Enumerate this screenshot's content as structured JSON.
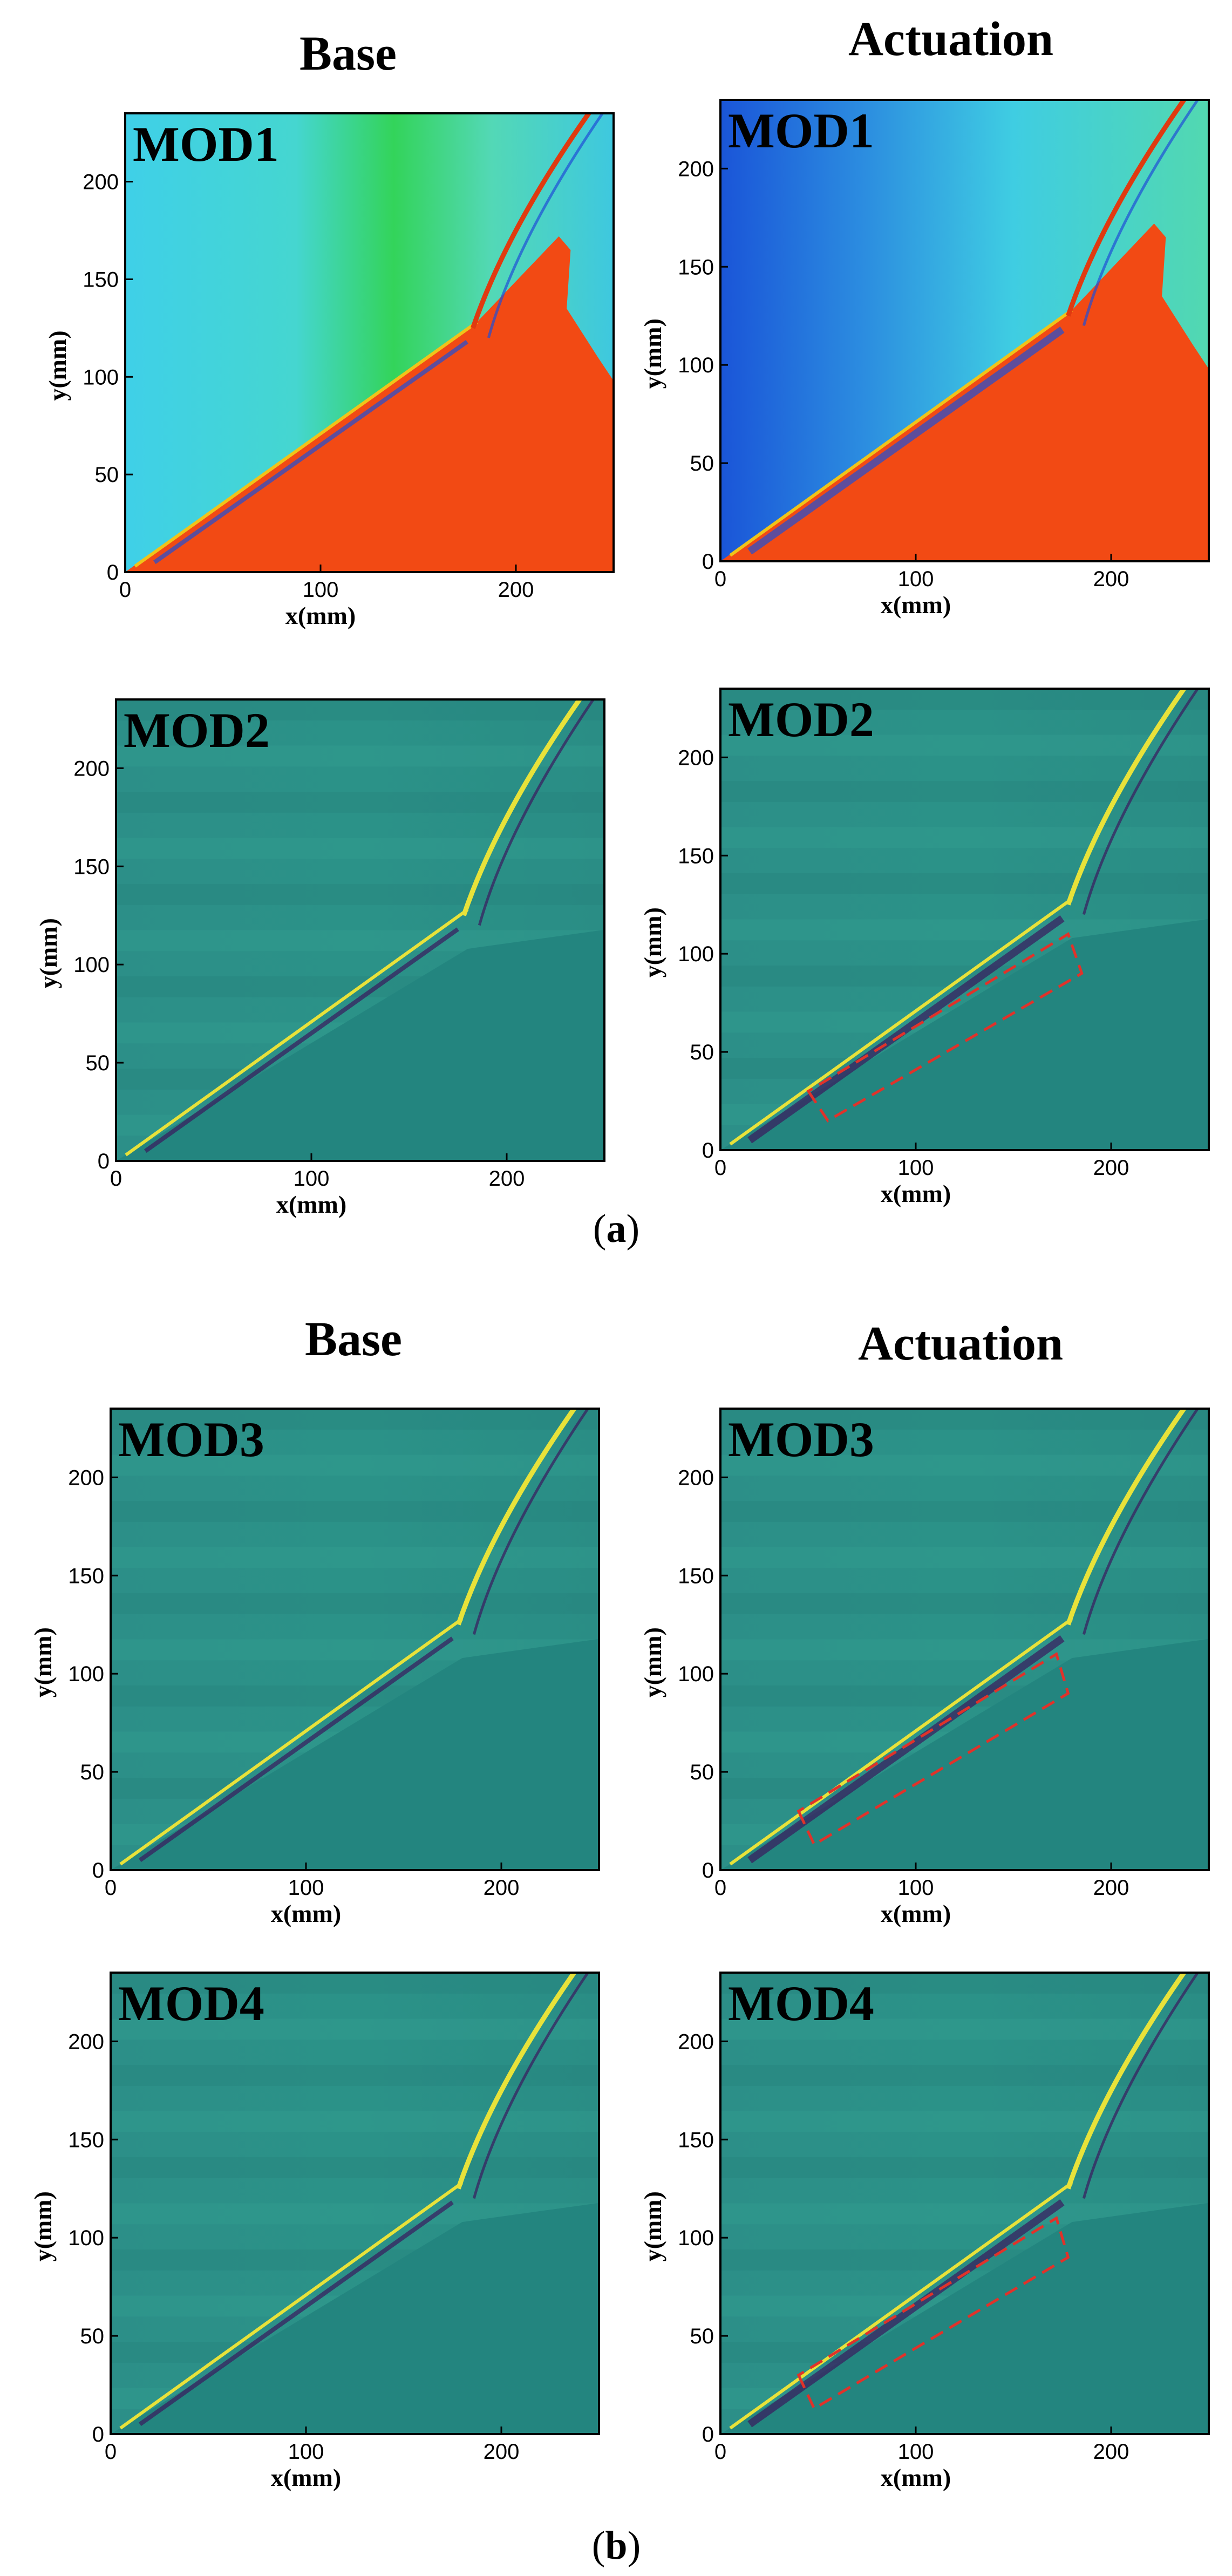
{
  "figure": {
    "part_a_caption": "a",
    "part_b_caption": "b",
    "titles": {
      "a_left": "Base",
      "a_right": "Actuation",
      "b_left": "Base",
      "b_right": "Actuation"
    }
  },
  "colors": {
    "mod1_bg": "#38c9e0",
    "mod1_wedge": "#f24a14",
    "mod_bg": "#2a8f86",
    "mod_wedge": "#23857f",
    "highlight_box": "#e0322a"
  },
  "chart_data": [
    {
      "id": "a_base_mod1",
      "type": "heatmap",
      "group": "a",
      "column": "Base",
      "label": "MOD1",
      "xlabel": "x(mm)",
      "ylabel": "y(mm)",
      "xlim": [
        0,
        250
      ],
      "ylim": [
        0,
        235
      ],
      "xticks": [
        0,
        100,
        200
      ],
      "yticks": [
        0,
        50,
        100,
        150,
        200
      ],
      "highlight_box": null
    },
    {
      "id": "a_act_mod1",
      "type": "heatmap",
      "group": "a",
      "column": "Actuation",
      "label": "MOD1",
      "xlabel": "x(mm)",
      "ylabel": "y(mm)",
      "xlim": [
        0,
        250
      ],
      "ylim": [
        0,
        235
      ],
      "xticks": [
        0,
        100,
        200
      ],
      "yticks": [
        0,
        50,
        100,
        150,
        200
      ],
      "highlight_box": null
    },
    {
      "id": "a_base_mod2",
      "type": "heatmap",
      "group": "a",
      "column": "Base",
      "label": "MOD2",
      "xlabel": "x(mm)",
      "ylabel": "y(mm)",
      "xlim": [
        0,
        250
      ],
      "ylim": [
        0,
        235
      ],
      "xticks": [
        0,
        100,
        200
      ],
      "yticks": [
        0,
        50,
        100,
        150,
        200
      ],
      "highlight_box": null
    },
    {
      "id": "a_act_mod2",
      "type": "heatmap",
      "group": "a",
      "column": "Actuation",
      "label": "MOD2",
      "xlabel": "x(mm)",
      "ylabel": "y(mm)",
      "xlim": [
        0,
        250
      ],
      "ylim": [
        0,
        235
      ],
      "xticks": [
        0,
        100,
        200
      ],
      "yticks": [
        0,
        50,
        100,
        150,
        200
      ],
      "highlight_box": [
        [
          45,
          30
        ],
        [
          55,
          15
        ],
        [
          185,
          90
        ],
        [
          178,
          110
        ]
      ]
    },
    {
      "id": "b_base_mod3",
      "type": "heatmap",
      "group": "b",
      "column": "Base",
      "label": "MOD3",
      "xlabel": "x(mm)",
      "ylabel": "y(mm)",
      "xlim": [
        0,
        250
      ],
      "ylim": [
        0,
        235
      ],
      "xticks": [
        0,
        100,
        200
      ],
      "yticks": [
        0,
        50,
        100,
        150,
        200
      ],
      "highlight_box": null
    },
    {
      "id": "b_act_mod3",
      "type": "heatmap",
      "group": "b",
      "column": "Actuation",
      "label": "MOD3",
      "xlabel": "x(mm)",
      "ylabel": "y(mm)",
      "xlim": [
        0,
        250
      ],
      "ylim": [
        0,
        235
      ],
      "xticks": [
        0,
        100,
        200
      ],
      "yticks": [
        0,
        50,
        100,
        150,
        200
      ],
      "highlight_box": [
        [
          40,
          30
        ],
        [
          48,
          13
        ],
        [
          178,
          90
        ],
        [
          172,
          110
        ]
      ]
    },
    {
      "id": "b_base_mod4",
      "type": "heatmap",
      "group": "b",
      "column": "Base",
      "label": "MOD4",
      "xlabel": "x(mm)",
      "ylabel": "y(mm)",
      "xlim": [
        0,
        250
      ],
      "ylim": [
        0,
        235
      ],
      "xticks": [
        0,
        100,
        200
      ],
      "yticks": [
        0,
        50,
        100,
        150,
        200
      ],
      "highlight_box": null
    },
    {
      "id": "b_act_mod4",
      "type": "heatmap",
      "group": "b",
      "column": "Actuation",
      "label": "MOD4",
      "xlabel": "x(mm)",
      "ylabel": "y(mm)",
      "xlim": [
        0,
        250
      ],
      "ylim": [
        0,
        235
      ],
      "xticks": [
        0,
        100,
        200
      ],
      "yticks": [
        0,
        50,
        100,
        150,
        200
      ],
      "highlight_box": [
        [
          40,
          30
        ],
        [
          48,
          13
        ],
        [
          178,
          90
        ],
        [
          172,
          110
        ]
      ]
    }
  ]
}
